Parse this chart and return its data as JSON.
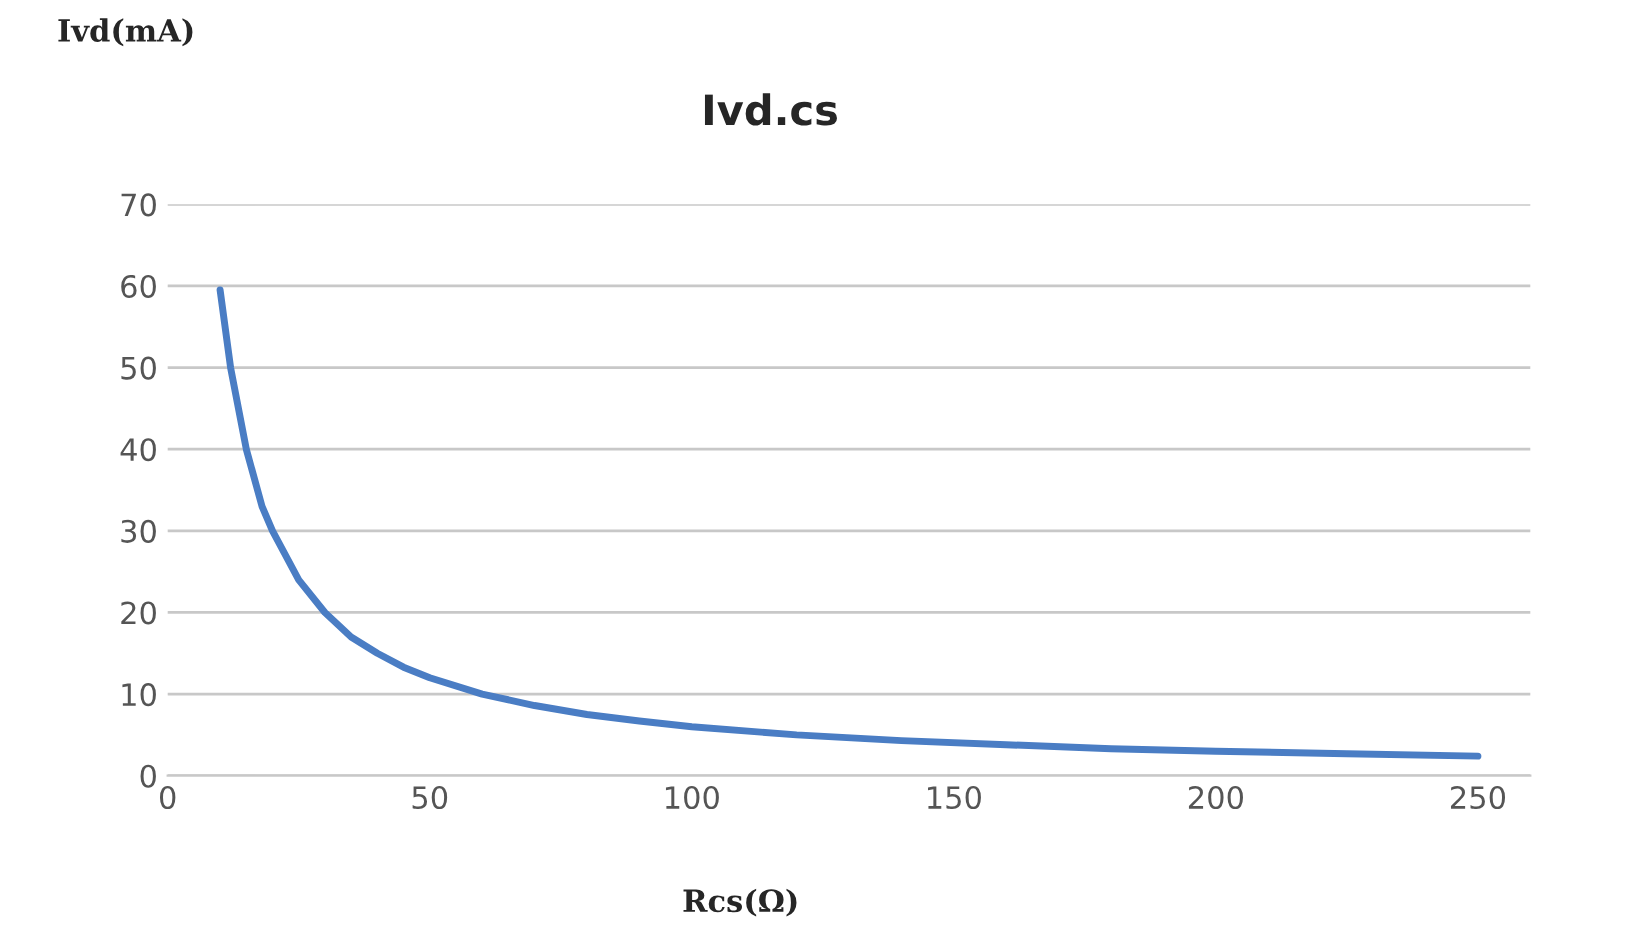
{
  "chart_data": {
    "type": "line",
    "title": "Ivd.cs",
    "xlabel": "Rcs(Ω)",
    "ylabel": "Ivd(mA)",
    "x": [
      10,
      12,
      15,
      18,
      20,
      25,
      30,
      35,
      40,
      45,
      50,
      60,
      70,
      80,
      90,
      100,
      120,
      140,
      160,
      180,
      200,
      225,
      250
    ],
    "series": [
      {
        "color": "#4a7dc4",
        "values": [
          59.5,
          50,
          40,
          33,
          30,
          24,
          20,
          17,
          15,
          13.3,
          12,
          10,
          8.6,
          7.5,
          6.7,
          6,
          5,
          4.3,
          3.8,
          3.3,
          3,
          2.7,
          2.4
        ]
      }
    ],
    "xlim": [
      0,
      260
    ],
    "xticks": [
      0,
      50,
      100,
      150,
      200,
      250
    ],
    "ylim": [
      0,
      70
    ],
    "yticks": [
      0,
      10,
      20,
      30,
      40,
      50,
      60,
      70
    ],
    "grid": "y",
    "legend": false,
    "marker": "none",
    "line_style": "solid"
  }
}
